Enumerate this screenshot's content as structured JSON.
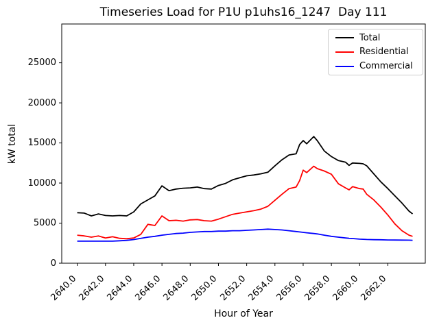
{
  "chart_data": {
    "type": "line",
    "title": "Timeseries Load for P1U p1uhs16_1247  Day 111",
    "xlabel": "Hour of Year",
    "ylabel": "kW total",
    "xlim": [
      2638.9,
      2664.65
    ],
    "ylim": [
      0,
      29840
    ],
    "grid": false,
    "legend_position": "upper right",
    "xticks": {
      "values": [
        2640,
        2642,
        2644,
        2646,
        2648,
        2650,
        2652,
        2654,
        2656,
        2658,
        2660,
        2662
      ],
      "labels": [
        "2640.0",
        "2642.0",
        "2644.0",
        "2646.0",
        "2648.0",
        "2650.0",
        "2652.0",
        "2654.0",
        "2656.0",
        "2658.0",
        "2660.0",
        "2662.0"
      ]
    },
    "yticks": {
      "values": [
        0,
        5000,
        10000,
        15000,
        20000,
        25000
      ],
      "labels": [
        "0",
        "5000",
        "10000",
        "15000",
        "20000",
        "25000"
      ]
    },
    "x": [
      2640,
      2640.5,
      2641,
      2641.5,
      2642,
      2642.5,
      2643,
      2643.5,
      2644,
      2644.5,
      2645,
      2645.5,
      2646,
      2646.5,
      2647,
      2647.5,
      2648,
      2648.5,
      2649,
      2649.5,
      2650,
      2650.5,
      2651,
      2651.5,
      2652,
      2652.5,
      2653,
      2653.5,
      2654,
      2654.5,
      2655,
      2655.5,
      2655.75,
      2656,
      2656.25,
      2656.75,
      2657,
      2657.5,
      2658,
      2658.5,
      2659,
      2659.25,
      2659.5,
      2660,
      2660.25,
      2660.5,
      2661,
      2661.5,
      2662,
      2662.5,
      2663,
      2663.5,
      2663.75
    ],
    "series": [
      {
        "name": "Total",
        "color": "#000000",
        "values": [
          6300,
          6250,
          5900,
          6150,
          5950,
          5900,
          5950,
          5900,
          6400,
          7400,
          7900,
          8400,
          9650,
          9050,
          9250,
          9350,
          9400,
          9500,
          9300,
          9250,
          9700,
          9950,
          10400,
          10650,
          10900,
          11000,
          11150,
          11350,
          12150,
          12900,
          13500,
          13650,
          14800,
          15300,
          14900,
          15800,
          15300,
          14000,
          13300,
          12800,
          12600,
          12200,
          12500,
          12450,
          12400,
          12150,
          11150,
          10150,
          9300,
          8400,
          7500,
          6500,
          6150
        ]
      },
      {
        "name": "Residential",
        "color": "#ff0000",
        "values": [
          3500,
          3400,
          3250,
          3400,
          3150,
          3300,
          3100,
          3050,
          3150,
          3600,
          4850,
          4700,
          5900,
          5300,
          5350,
          5250,
          5400,
          5450,
          5300,
          5250,
          5500,
          5800,
          6100,
          6250,
          6400,
          6550,
          6750,
          7100,
          7850,
          8600,
          9300,
          9500,
          10300,
          11600,
          11300,
          12100,
          11800,
          11500,
          11100,
          9900,
          9400,
          9150,
          9550,
          9300,
          9250,
          8600,
          7900,
          7000,
          6000,
          4900,
          4050,
          3500,
          3350
        ]
      },
      {
        "name": "Commercial",
        "color": "#0000ff",
        "values": [
          2750,
          2750,
          2750,
          2750,
          2750,
          2750,
          2800,
          2850,
          2950,
          3100,
          3250,
          3350,
          3500,
          3600,
          3700,
          3750,
          3850,
          3900,
          3950,
          3950,
          4000,
          4000,
          4050,
          4050,
          4100,
          4150,
          4200,
          4250,
          4200,
          4150,
          4050,
          3950,
          3900,
          3850,
          3800,
          3700,
          3650,
          3500,
          3350,
          3250,
          3150,
          3100,
          3080,
          3000,
          2980,
          2960,
          2930,
          2920,
          2900,
          2890,
          2880,
          2870,
          2860
        ]
      }
    ]
  },
  "colors": {
    "background": "#ffffff",
    "axis": "#000000",
    "legend_border": "#cccccc"
  }
}
